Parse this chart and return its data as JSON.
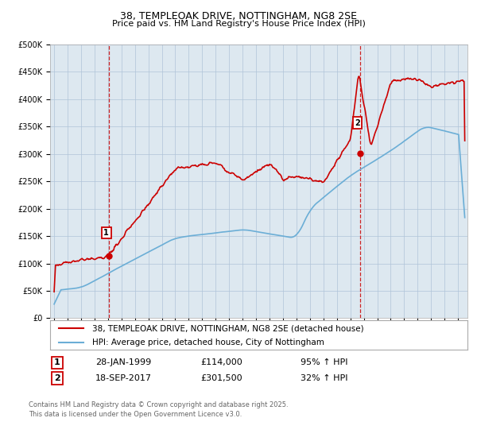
{
  "title": "38, TEMPLEOAK DRIVE, NOTTINGHAM, NG8 2SE",
  "subtitle": "Price paid vs. HM Land Registry's House Price Index (HPI)",
  "legend_line1": "38, TEMPLEOAK DRIVE, NOTTINGHAM, NG8 2SE (detached house)",
  "legend_line2": "HPI: Average price, detached house, City of Nottingham",
  "sale1_label": "1",
  "sale1_date": "28-JAN-1999",
  "sale1_price": "£114,000",
  "sale1_pct": "95% ↑ HPI",
  "sale1_year": 1999.08,
  "sale1_value": 114000,
  "sale2_label": "2",
  "sale2_date": "18-SEP-2017",
  "sale2_price": "£301,500",
  "sale2_pct": "32% ↑ HPI",
  "sale2_year": 2017.72,
  "sale2_value": 301500,
  "footnote": "Contains HM Land Registry data © Crown copyright and database right 2025.\nThis data is licensed under the Open Government Licence v3.0.",
  "ylim": [
    0,
    500000
  ],
  "yticks": [
    0,
    50000,
    100000,
    150000,
    200000,
    250000,
    300000,
    350000,
    400000,
    450000,
    500000
  ],
  "xlim_min": 1994.7,
  "xlim_max": 2025.7,
  "xtick_start": 1995,
  "xtick_end": 2025,
  "hpi_color": "#6baed6",
  "price_color": "#cc0000",
  "vline_color": "#cc0000",
  "plot_bg_color": "#dde8f0",
  "background_color": "#ffffff",
  "grid_color": "#b0c4d8",
  "title_fontsize": 9,
  "tick_fontsize": 7,
  "legend_fontsize": 7.5,
  "footnote_fontsize": 6
}
